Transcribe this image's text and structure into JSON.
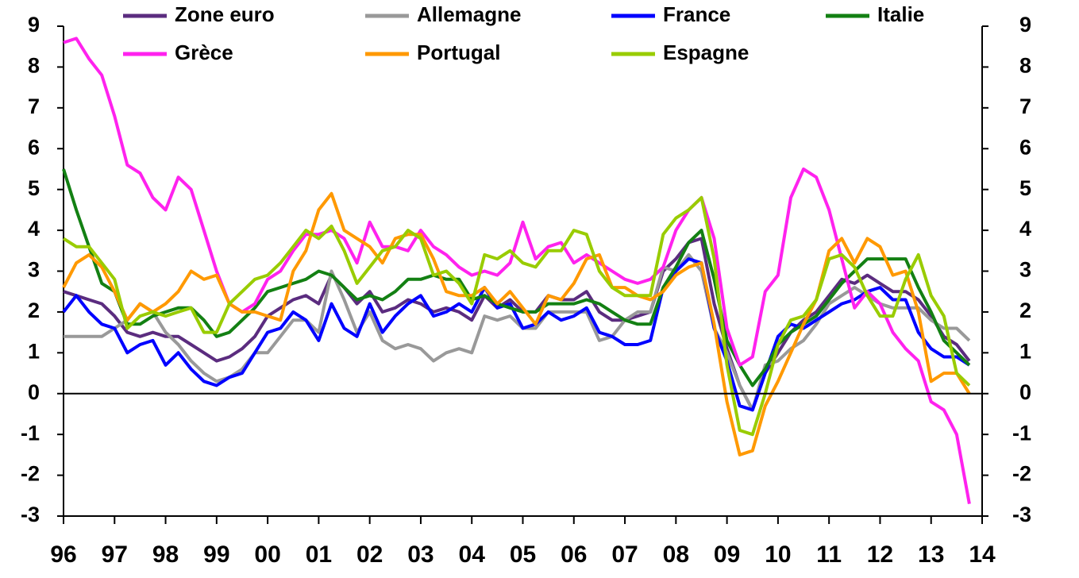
{
  "chart_data": {
    "type": "line",
    "x": [
      1996,
      1996.25,
      1996.5,
      1996.75,
      1997,
      1997.25,
      1997.5,
      1997.75,
      1998,
      1998.25,
      1998.5,
      1998.75,
      1999,
      1999.25,
      1999.5,
      1999.75,
      2000,
      2000.25,
      2000.5,
      2000.75,
      2001,
      2001.25,
      2001.5,
      2001.75,
      2002,
      2002.25,
      2002.5,
      2002.75,
      2003,
      2003.25,
      2003.5,
      2003.75,
      2004,
      2004.25,
      2004.5,
      2004.75,
      2005,
      2005.25,
      2005.5,
      2005.75,
      2006,
      2006.25,
      2006.5,
      2006.75,
      2007,
      2007.25,
      2007.5,
      2007.75,
      2008,
      2008.25,
      2008.5,
      2008.75,
      2009,
      2009.25,
      2009.5,
      2009.75,
      2010,
      2010.25,
      2010.5,
      2010.75,
      2011,
      2011.25,
      2011.5,
      2011.75,
      2012,
      2012.25,
      2012.5,
      2012.75,
      2013,
      2013.25,
      2013.5,
      2013.75
    ],
    "xlim": [
      1996,
      2014
    ],
    "xticks": [
      {
        "value": 1996,
        "label": "96"
      },
      {
        "value": 1997,
        "label": "97"
      },
      {
        "value": 1998,
        "label": "98"
      },
      {
        "value": 1999,
        "label": "99"
      },
      {
        "value": 2000,
        "label": "00"
      },
      {
        "value": 2001,
        "label": "01"
      },
      {
        "value": 2002,
        "label": "02"
      },
      {
        "value": 2003,
        "label": "03"
      },
      {
        "value": 2004,
        "label": "04"
      },
      {
        "value": 2005,
        "label": "05"
      },
      {
        "value": 2006,
        "label": "06"
      },
      {
        "value": 2007,
        "label": "07"
      },
      {
        "value": 2008,
        "label": "08"
      },
      {
        "value": 2009,
        "label": "09"
      },
      {
        "value": 2010,
        "label": "10"
      },
      {
        "value": 2011,
        "label": "11"
      },
      {
        "value": 2012,
        "label": "12"
      },
      {
        "value": 2013,
        "label": "13"
      },
      {
        "value": 2014,
        "label": "14"
      }
    ],
    "ylim": [
      -3,
      9
    ],
    "yticks": [
      -3,
      -2,
      -1,
      0,
      1,
      2,
      3,
      4,
      5,
      6,
      7,
      8,
      9
    ],
    "y2lim": [
      -3,
      9
    ],
    "y2ticks": [
      -3,
      -2,
      -1,
      0,
      1,
      2,
      3,
      4,
      5,
      6,
      7,
      8,
      9
    ],
    "series": [
      {
        "name": "Zone euro",
        "color": "#5b2c7f",
        "values": [
          2.5,
          2.4,
          2.3,
          2.2,
          1.9,
          1.5,
          1.4,
          1.5,
          1.4,
          1.4,
          1.2,
          1.0,
          0.8,
          0.9,
          1.1,
          1.4,
          1.9,
          2.1,
          2.3,
          2.4,
          2.2,
          2.9,
          2.6,
          2.2,
          2.5,
          2.0,
          2.1,
          2.3,
          2.2,
          2.0,
          2.1,
          2.0,
          1.8,
          2.4,
          2.1,
          2.3,
          2.0,
          2.0,
          2.4,
          2.3,
          2.3,
          2.5,
          2.0,
          1.8,
          1.8,
          1.9,
          2.0,
          3.0,
          3.3,
          3.7,
          3.8,
          2.2,
          1.1,
          0.2,
          -0.4,
          0.5,
          1.0,
          1.5,
          1.8,
          2.0,
          2.4,
          2.8,
          2.7,
          2.9,
          2.7,
          2.5,
          2.5,
          2.3,
          1.9,
          1.4,
          1.2,
          0.8
        ]
      },
      {
        "name": "Allemagne",
        "color": "#999999",
        "values": [
          1.4,
          1.4,
          1.4,
          1.4,
          1.6,
          1.8,
          2.2,
          2.0,
          1.5,
          1.2,
          0.8,
          0.5,
          0.3,
          0.4,
          0.6,
          1.0,
          1.0,
          1.4,
          1.8,
          1.8,
          1.5,
          3.0,
          2.3,
          1.5,
          2.0,
          1.3,
          1.1,
          1.2,
          1.1,
          0.8,
          1.0,
          1.1,
          1.0,
          1.9,
          1.8,
          1.9,
          1.6,
          1.6,
          2.0,
          2.0,
          2.0,
          2.0,
          1.3,
          1.4,
          1.8,
          2.0,
          2.0,
          3.1,
          3.0,
          3.4,
          3.0,
          1.6,
          1.0,
          0.2,
          -0.4,
          0.7,
          0.8,
          1.1,
          1.3,
          1.7,
          2.2,
          2.4,
          2.6,
          2.4,
          2.2,
          2.1,
          2.1,
          2.1,
          1.8,
          1.6,
          1.6,
          1.3
        ]
      },
      {
        "name": "France",
        "color": "#0000ff",
        "values": [
          2.0,
          2.4,
          2.0,
          1.7,
          1.6,
          1.0,
          1.2,
          1.3,
          0.7,
          1.0,
          0.6,
          0.3,
          0.2,
          0.4,
          0.5,
          1.0,
          1.5,
          1.6,
          2.0,
          1.8,
          1.3,
          2.2,
          1.6,
          1.4,
          2.2,
          1.5,
          1.9,
          2.2,
          2.4,
          1.9,
          2.0,
          2.2,
          2.0,
          2.6,
          2.1,
          2.2,
          1.6,
          1.7,
          2.0,
          1.8,
          1.9,
          2.1,
          1.5,
          1.4,
          1.2,
          1.2,
          1.3,
          2.6,
          3.0,
          3.3,
          3.2,
          1.6,
          0.8,
          -0.3,
          -0.4,
          0.5,
          1.4,
          1.7,
          1.6,
          1.8,
          2.0,
          2.2,
          2.3,
          2.5,
          2.6,
          2.3,
          2.3,
          1.5,
          1.1,
          0.9,
          0.9,
          0.7
        ]
      },
      {
        "name": "Italie",
        "color": "#138013",
        "values": [
          5.5,
          4.5,
          3.6,
          2.7,
          2.5,
          1.7,
          1.7,
          1.9,
          2.0,
          2.1,
          2.1,
          1.8,
          1.4,
          1.5,
          1.8,
          2.1,
          2.5,
          2.6,
          2.7,
          2.8,
          3.0,
          2.9,
          2.6,
          2.3,
          2.4,
          2.3,
          2.5,
          2.8,
          2.8,
          2.9,
          2.8,
          2.8,
          2.3,
          2.4,
          2.2,
          2.1,
          2.0,
          2.0,
          2.2,
          2.2,
          2.2,
          2.3,
          2.2,
          2.0,
          1.8,
          1.7,
          1.7,
          2.6,
          3.1,
          3.7,
          4.0,
          2.8,
          1.3,
          0.7,
          0.2,
          0.6,
          1.2,
          1.5,
          1.7,
          1.9,
          2.3,
          2.7,
          3.0,
          3.3,
          3.3,
          3.3,
          3.3,
          2.6,
          2.0,
          1.3,
          1.0,
          0.7
        ]
      },
      {
        "name": "Grèce",
        "color": "#ff22ee",
        "values": [
          8.6,
          8.7,
          8.2,
          7.8,
          6.8,
          5.6,
          5.4,
          4.8,
          4.5,
          5.3,
          5.0,
          4.0,
          3.0,
          2.2,
          2.0,
          2.2,
          2.8,
          3.0,
          3.5,
          3.9,
          3.9,
          4.0,
          3.8,
          3.2,
          4.2,
          3.6,
          3.6,
          3.5,
          4.0,
          3.6,
          3.4,
          3.1,
          2.9,
          3.0,
          2.9,
          3.2,
          4.2,
          3.3,
          3.6,
          3.7,
          3.2,
          3.4,
          3.2,
          3.0,
          2.8,
          2.7,
          2.8,
          3.1,
          4.0,
          4.5,
          4.8,
          3.8,
          1.6,
          0.7,
          0.9,
          2.5,
          2.9,
          4.8,
          5.5,
          5.3,
          4.5,
          3.3,
          2.1,
          2.5,
          2.2,
          1.5,
          1.1,
          0.8,
          -0.2,
          -0.4,
          -1.0,
          -2.7
        ]
      },
      {
        "name": "Portugal",
        "color": "#ff9900",
        "values": [
          2.6,
          3.2,
          3.4,
          3.1,
          2.5,
          1.8,
          2.2,
          2.0,
          2.2,
          2.5,
          3.0,
          2.8,
          2.9,
          2.2,
          2.0,
          2.0,
          1.9,
          1.8,
          3.0,
          3.5,
          4.5,
          4.9,
          4.0,
          3.8,
          3.6,
          3.2,
          3.8,
          3.9,
          3.9,
          3.3,
          2.5,
          2.4,
          2.4,
          2.6,
          2.2,
          2.5,
          2.1,
          1.7,
          2.4,
          2.3,
          2.7,
          3.3,
          3.4,
          2.6,
          2.6,
          2.4,
          2.3,
          2.5,
          2.9,
          3.1,
          3.2,
          1.7,
          -0.2,
          -1.5,
          -1.4,
          -0.3,
          0.3,
          1.0,
          1.7,
          2.3,
          3.5,
          3.8,
          3.2,
          3.8,
          3.6,
          2.9,
          3.0,
          2.0,
          0.3,
          0.5,
          0.5,
          0.0
        ]
      },
      {
        "name": "Espagne",
        "color": "#99cc00",
        "values": [
          3.8,
          3.6,
          3.6,
          3.2,
          2.8,
          1.6,
          1.9,
          2.0,
          1.9,
          2.0,
          2.1,
          1.5,
          1.5,
          2.2,
          2.5,
          2.8,
          2.9,
          3.2,
          3.6,
          4.0,
          3.8,
          4.1,
          3.5,
          2.7,
          3.1,
          3.5,
          3.6,
          4.0,
          3.8,
          2.9,
          3.0,
          2.7,
          2.2,
          3.4,
          3.3,
          3.5,
          3.2,
          3.1,
          3.5,
          3.5,
          4.0,
          3.9,
          3.0,
          2.6,
          2.4,
          2.4,
          2.4,
          3.9,
          4.3,
          4.5,
          4.8,
          3.3,
          0.7,
          -0.9,
          -1.0,
          0.0,
          1.2,
          1.8,
          1.9,
          2.3,
          3.3,
          3.4,
          3.1,
          2.4,
          1.9,
          1.9,
          2.8,
          3.4,
          2.4,
          1.9,
          0.5,
          0.2
        ]
      }
    ]
  }
}
